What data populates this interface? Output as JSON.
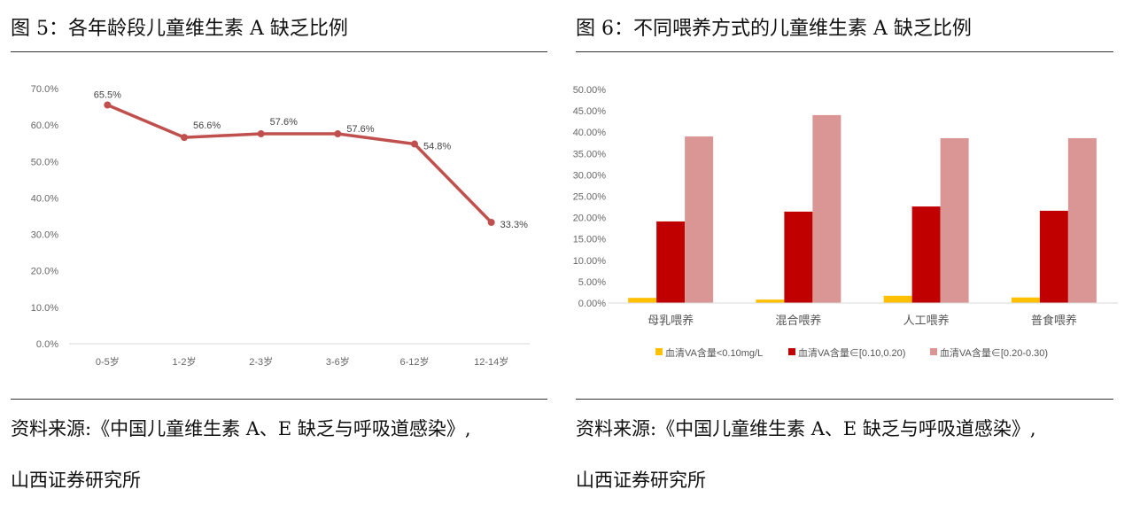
{
  "left": {
    "title": "图 5：各年龄段儿童维生素 A 缺乏比例",
    "source_line1": "资料来源:《中国儿童维生素 A、E 缺乏与呼吸道感染》,",
    "source_line2": "山西证券研究所"
  },
  "right": {
    "title": "图 6：不同喂养方式的儿童维生素 A 缺乏比例",
    "source_line1": "资料来源:《中国儿童维生素 A、E 缺乏与呼吸道感染》,",
    "source_line2": "山西证券研究所"
  },
  "chart_data": [
    {
      "type": "line",
      "categories": [
        "0-5岁",
        "1-2岁",
        "2-3岁",
        "3-6岁",
        "6-12岁",
        "12-14岁"
      ],
      "values": [
        65.5,
        56.6,
        57.6,
        57.6,
        54.8,
        33.3
      ],
      "data_labels": [
        "65.5%",
        "56.6%",
        "57.6%",
        "57.6%",
        "54.8%",
        "33.3%"
      ],
      "ylim": [
        0,
        70
      ],
      "yticks": [
        "0.0%",
        "10.0%",
        "20.0%",
        "30.0%",
        "40.0%",
        "50.0%",
        "60.0%",
        "70.0%"
      ],
      "color": "#c0504d",
      "grid": false
    },
    {
      "type": "bar",
      "categories": [
        "母乳喂养",
        "混合喂养",
        "人工喂养",
        "普食喂养"
      ],
      "series": [
        {
          "name": "血清VA含量<0.10mg/L",
          "values": [
            1.2,
            0.8,
            1.7,
            1.3
          ],
          "color": "#ffc000"
        },
        {
          "name": "血清VA含量∈[0.10,0.20)",
          "values": [
            19.1,
            21.4,
            22.6,
            21.6
          ],
          "color": "#c00000"
        },
        {
          "name": "血清VA含量∈[0.20-0.30)",
          "values": [
            39.0,
            44.0,
            38.6,
            38.6
          ],
          "color": "#d99694"
        }
      ],
      "ylim": [
        0,
        50
      ],
      "yticks": [
        "0.00%",
        "5.00%",
        "10.00%",
        "15.00%",
        "20.00%",
        "25.00%",
        "30.00%",
        "35.00%",
        "40.00%",
        "45.00%",
        "50.00%"
      ],
      "legend": "bottom",
      "grid": false
    }
  ]
}
